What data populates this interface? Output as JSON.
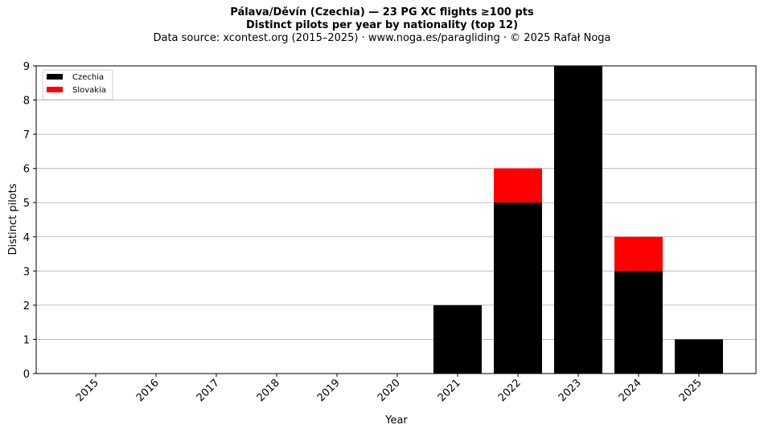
{
  "title_line1": "Pálava/Děvín (Czechia)  —  23 PG XC flights ≥100 pts",
  "title_line2": "Distinct pilots per year by nationality (top 12)",
  "subtitle": "Data source: xcontest.org (2015–2025)  ·  www.noga.es/paragliding  ·  © 2025 Rafał Noga",
  "chart_data": {
    "type": "bar",
    "stacked": true,
    "title": "Pálava/Děvín (Czechia)  —  23 PG XC flights ≥100 pts",
    "subtitle": "Distinct pilots per year by nationality (top 12)",
    "xlabel": "Year",
    "ylabel": "Distinct pilots",
    "categories": [
      "2015",
      "2016",
      "2017",
      "2018",
      "2019",
      "2020",
      "2021",
      "2022",
      "2023",
      "2024",
      "2025"
    ],
    "series": [
      {
        "name": "Czechia",
        "color": "#000000",
        "values": [
          0,
          0,
          0,
          0,
          0,
          0,
          2,
          5,
          9,
          3,
          1
        ]
      },
      {
        "name": "Slovakia",
        "color": "#ff0000",
        "values": [
          0,
          0,
          0,
          0,
          0,
          0,
          0,
          1,
          0,
          1,
          0
        ]
      }
    ],
    "ylim": [
      0,
      9
    ],
    "yticks": [
      0,
      1,
      2,
      3,
      4,
      5,
      6,
      7,
      8,
      9
    ],
    "grid": "y",
    "legend": "top-left"
  }
}
